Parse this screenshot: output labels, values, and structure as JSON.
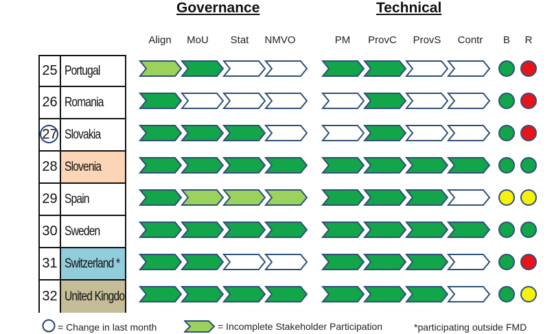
{
  "headers": {
    "governance": "Governance",
    "technical": "Technical"
  },
  "columns": [
    "Align",
    "MoU",
    "Stat",
    "NMVO",
    "PM",
    "ProvC",
    "ProvS",
    "Contr",
    "B",
    "R"
  ],
  "colors": {
    "complete": "#12a54a",
    "incomplete": "#9bd25c",
    "empty": "#ffffff",
    "outline": "#2e4f7a",
    "status_green": "#12a54a",
    "status_red": "#e8141c",
    "status_yellow": "#f6f20a"
  },
  "rows": [
    {
      "num": "25",
      "name": "Portugal",
      "bg": "#ffffff",
      "changed": false,
      "chevrons": [
        "incomplete",
        "complete",
        "empty",
        "empty",
        "complete",
        "complete",
        "empty",
        "empty"
      ],
      "b": "green",
      "r": "red"
    },
    {
      "num": "26",
      "name": "Romania",
      "bg": "#ffffff",
      "changed": false,
      "chevrons": [
        "complete",
        "empty",
        "empty",
        "empty",
        "empty",
        "complete",
        "empty",
        "empty"
      ],
      "b": "green",
      "r": "red"
    },
    {
      "num": "27",
      "name": "Slovakia",
      "bg": "#ffffff",
      "changed": true,
      "chevrons": [
        "complete",
        "complete",
        "complete",
        "empty",
        "empty",
        "complete",
        "empty",
        "empty"
      ],
      "b": "green",
      "r": "red"
    },
    {
      "num": "28",
      "name": "Slovenia",
      "bg": "#fbd5b5",
      "changed": false,
      "chevrons": [
        "complete",
        "complete",
        "complete",
        "complete",
        "complete",
        "complete",
        "complete",
        "complete"
      ],
      "b": "green",
      "r": "green"
    },
    {
      "num": "29",
      "name": "Spain",
      "bg": "#ffffff",
      "changed": false,
      "chevrons": [
        "complete",
        "incomplete",
        "incomplete",
        "incomplete",
        "complete",
        "complete",
        "complete",
        "empty"
      ],
      "b": "yellow",
      "r": "yellow"
    },
    {
      "num": "30",
      "name": "Sweden",
      "bg": "#ffffff",
      "changed": false,
      "chevrons": [
        "complete",
        "complete",
        "complete",
        "complete",
        "complete",
        "complete",
        "complete",
        "complete"
      ],
      "b": "green",
      "r": "green"
    },
    {
      "num": "31",
      "name": "Switzerland *",
      "bg": "#92cddc",
      "changed": false,
      "chevrons": [
        "complete",
        "complete",
        "empty",
        "empty",
        "complete",
        "complete",
        "complete",
        "empty"
      ],
      "b": "green",
      "r": "red"
    },
    {
      "num": "32",
      "name": "United Kingdom",
      "bg": "#c4bd97",
      "changed": false,
      "chevrons": [
        "complete",
        "complete",
        "complete",
        "complete",
        "complete",
        "complete",
        "complete",
        "empty"
      ],
      "b": "green",
      "r": "yellow"
    }
  ],
  "legend": {
    "change": "= Change in last month",
    "incomplete": "= Incomplete Stakeholder Participation",
    "note": "*participating outside FMD"
  }
}
